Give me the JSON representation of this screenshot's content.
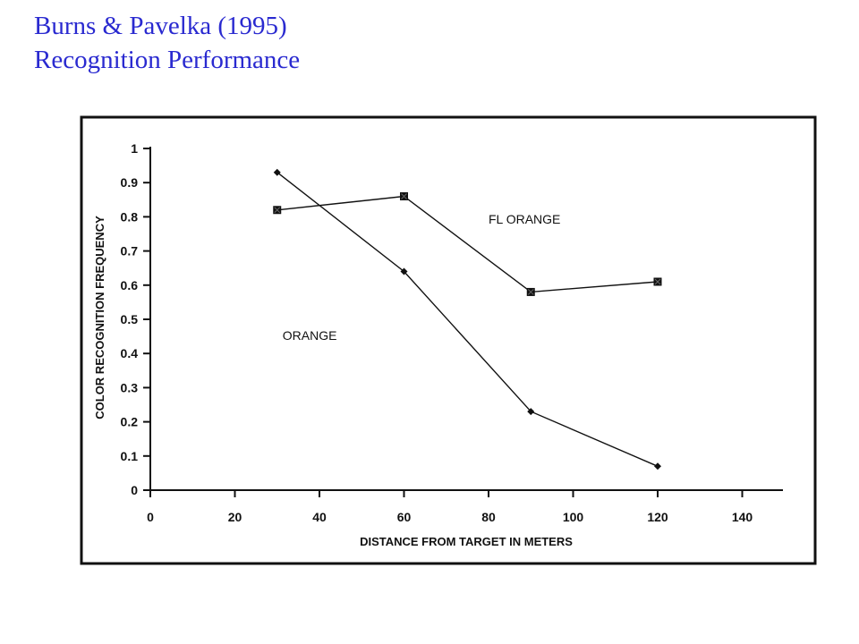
{
  "slide": {
    "title_line1": "Burns & Pavelka (1995)",
    "title_line2": "Recognition Performance"
  },
  "colors": {
    "title": "#2a2ad0",
    "ink": "#111111"
  },
  "chart_data": {
    "type": "line",
    "xlabel": "DISTANCE FROM TARGET IN METERS",
    "ylabel": "COLOR RECOGNITION FREQUENCY",
    "xlim": [
      0,
      150
    ],
    "ylim": [
      0,
      1
    ],
    "x_ticks": [
      0,
      20,
      40,
      60,
      80,
      100,
      120,
      140
    ],
    "x_tick_labels": [
      "0",
      "20",
      "40",
      "60",
      "80",
      "100",
      "120",
      "140"
    ],
    "y_ticks": [
      0,
      0.1,
      0.2,
      0.3,
      0.4,
      0.5,
      0.6,
      0.7,
      0.8,
      0.9,
      1
    ],
    "y_tick_labels": [
      "0",
      "0.1",
      "0.2",
      "0.3",
      "0.4",
      "0.5",
      "0.6",
      "0.7",
      "0.8",
      "0.9",
      "1"
    ],
    "grid": false,
    "series": [
      {
        "name": "FL ORANGE",
        "marker": "square",
        "x": [
          30,
          60,
          90,
          120
        ],
        "y": [
          0.82,
          0.86,
          0.58,
          0.61
        ],
        "label_at": [
          80,
          0.78
        ]
      },
      {
        "name": "ORANGE",
        "marker": "diamond",
        "x": [
          30,
          60,
          90,
          120
        ],
        "y": [
          0.93,
          0.64,
          0.23,
          0.07
        ],
        "label_at": [
          30,
          0.44
        ]
      }
    ]
  }
}
